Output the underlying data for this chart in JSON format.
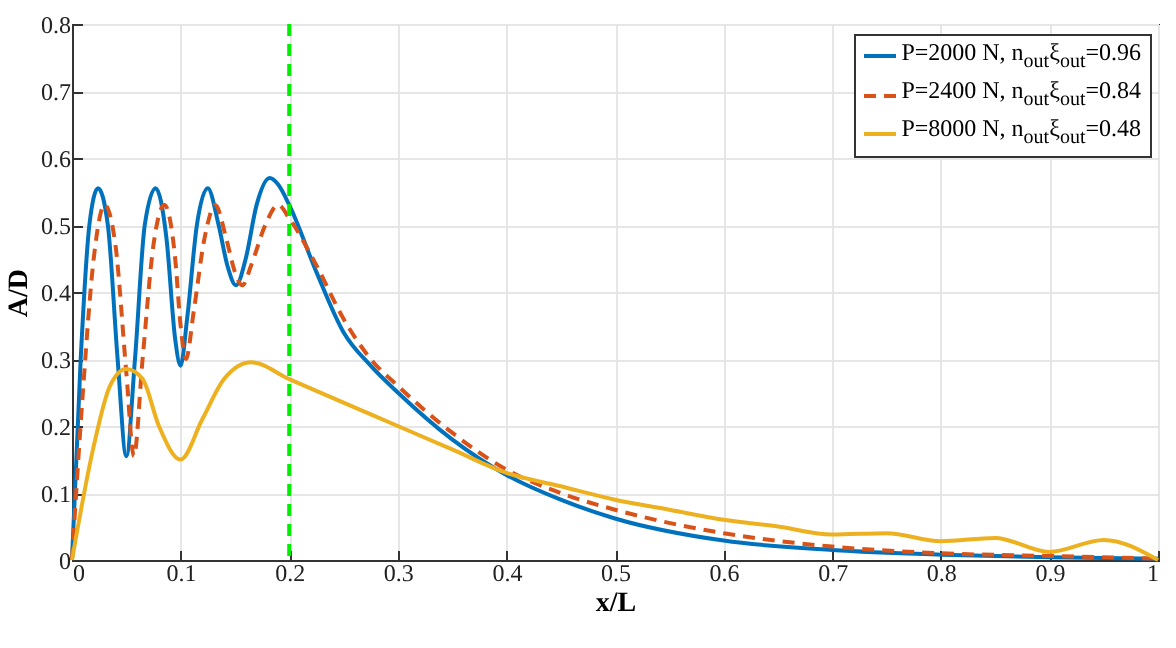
{
  "chart_data": {
    "type": "line",
    "xlabel": "x/L",
    "ylabel": "A/D",
    "xlim": [
      0,
      1
    ],
    "ylim": [
      0,
      0.8
    ],
    "xticks": [
      0,
      0.1,
      0.2,
      0.3,
      0.4,
      0.5,
      0.6,
      0.7,
      0.8,
      0.9,
      1
    ],
    "yticks": [
      0,
      0.1,
      0.2,
      0.3,
      0.4,
      0.5,
      0.6,
      0.7,
      0.8
    ],
    "grid": true,
    "legend": "top right",
    "ref_lines": [
      {
        "axis": "x",
        "value": 0.2,
        "color": "#00ee00",
        "line_style": "dashed"
      }
    ],
    "series": [
      {
        "name": "P=2000 N, n$_{out}$ξ$_{out}$=0.96",
        "color": "#0072bd",
        "line_style": "solid",
        "x": [
          0,
          0.008,
          0.016,
          0.024,
          0.033,
          0.042,
          0.05,
          0.058,
          0.067,
          0.077,
          0.087,
          0.095,
          0.1,
          0.106,
          0.115,
          0.125,
          0.135,
          0.143,
          0.151,
          0.16,
          0.17,
          0.182,
          0.19,
          0.2,
          0.225,
          0.25,
          0.275,
          0.3,
          0.35,
          0.4,
          0.45,
          0.5,
          0.6,
          0.7,
          0.8,
          0.9,
          1.0
        ],
        "values": [
          0,
          0.3,
          0.5,
          0.555,
          0.5,
          0.3,
          0.155,
          0.3,
          0.5,
          0.555,
          0.48,
          0.33,
          0.29,
          0.36,
          0.5,
          0.555,
          0.5,
          0.44,
          0.41,
          0.45,
          0.53,
          0.57,
          0.56,
          0.53,
          0.43,
          0.34,
          0.29,
          0.25,
          0.18,
          0.127,
          0.09,
          0.062,
          0.029,
          0.015,
          0.008,
          0.004,
          0.002
        ]
      },
      {
        "name": "P=2400 N, n$_{out}$ξ$_{out}$=0.84",
        "color": "#d95319",
        "line_style": "dashed",
        "x": [
          0,
          0.01,
          0.02,
          0.03,
          0.04,
          0.05,
          0.057,
          0.065,
          0.075,
          0.085,
          0.095,
          0.1,
          0.105,
          0.112,
          0.122,
          0.132,
          0.142,
          0.15,
          0.157,
          0.165,
          0.178,
          0.19,
          0.2,
          0.225,
          0.25,
          0.275,
          0.3,
          0.35,
          0.4,
          0.45,
          0.5,
          0.6,
          0.7,
          0.8,
          0.9,
          1.0
        ],
        "values": [
          0,
          0.25,
          0.45,
          0.53,
          0.47,
          0.28,
          0.155,
          0.3,
          0.47,
          0.53,
          0.45,
          0.35,
          0.3,
          0.37,
          0.48,
          0.53,
          0.48,
          0.43,
          0.41,
          0.44,
          0.5,
          0.53,
          0.51,
          0.44,
          0.36,
          0.3,
          0.26,
          0.19,
          0.135,
          0.1,
          0.075,
          0.04,
          0.02,
          0.01,
          0.006,
          0.002
        ]
      },
      {
        "name": "P=8000 N, n$_{out}$ξ$_{out}$=0.48",
        "color": "#edb120",
        "line_style": "solid",
        "x": [
          0,
          0.02,
          0.035,
          0.05,
          0.065,
          0.08,
          0.1,
          0.12,
          0.14,
          0.165,
          0.2,
          0.25,
          0.3,
          0.35,
          0.4,
          0.45,
          0.5,
          0.55,
          0.6,
          0.65,
          0.7,
          0.75,
          0.8,
          0.85,
          0.9,
          0.95,
          1.0
        ],
        "values": [
          0,
          0.17,
          0.26,
          0.285,
          0.27,
          0.2,
          0.15,
          0.21,
          0.27,
          0.295,
          0.27,
          0.235,
          0.2,
          0.165,
          0.13,
          0.11,
          0.09,
          0.075,
          0.06,
          0.05,
          0.038,
          0.04,
          0.028,
          0.033,
          0.012,
          0.03,
          0
        ]
      }
    ]
  }
}
